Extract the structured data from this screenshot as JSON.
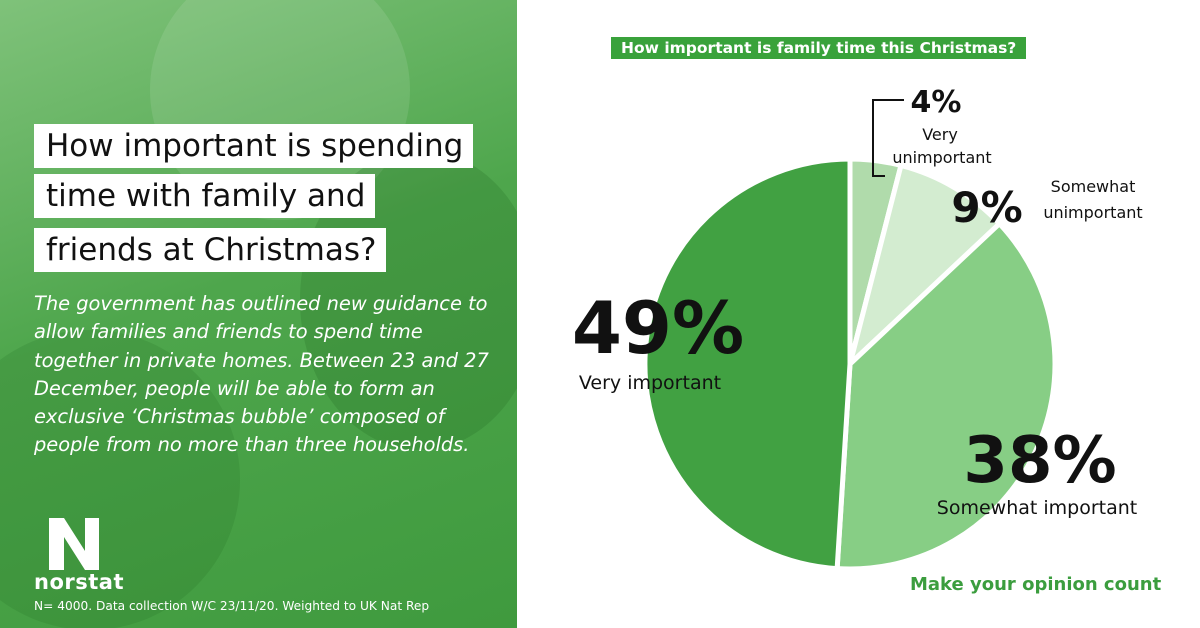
{
  "left_panel": {
    "headline_lines": [
      "How important is spending",
      "time with family and",
      "friends at Christmas?"
    ],
    "body": "The government has outlined new guidance to allow families and friends to spend time together in private homes. Between 23 and 27 December, people will be able to form an exclusive ‘Christmas bubble’ composed of people from no more than three households.",
    "brand": "norstat",
    "logo_letter": "N",
    "footnote": "N= 4000. Data collection W/C 23/11/20. Weighted to UK Nat Rep"
  },
  "cta": "Make your opinion count",
  "colors": {
    "brand_green": "#39a23b",
    "very_important": "#41a142",
    "somewhat_important": "#87ce85",
    "somewhat_unimportant": "#d3ecd0",
    "very_unimportant": "#b0dbab"
  },
  "chart_data": {
    "type": "pie",
    "title": "How important is family time this Christmas?",
    "unit": "%",
    "slices": [
      {
        "label": "Very unimportant",
        "value": 4,
        "display": "4%",
        "color": "#b0dbab"
      },
      {
        "label": "Somewhat unimportant",
        "value": 9,
        "display": "9%",
        "color": "#d3ecd0"
      },
      {
        "label": "Somewhat important",
        "value": 38,
        "display": "38%",
        "color": "#87ce85"
      },
      {
        "label": "Very important",
        "value": 49,
        "display": "49%",
        "color": "#41a142"
      }
    ]
  }
}
